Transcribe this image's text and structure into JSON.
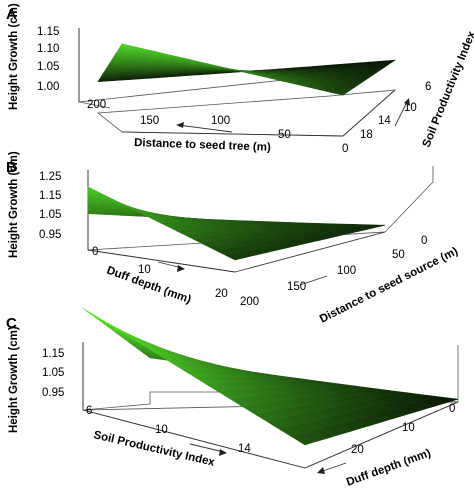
{
  "colors": {
    "surface_high": "#55e12c",
    "surface_low": "#050a03",
    "axis": "#333333"
  },
  "chart_data": [
    {
      "panel": "A",
      "type": "surface",
      "zlabel": "Height Growth (cm)",
      "xlabel": "Distance to seed tree (m)",
      "ylabel": "Soil Productivity Index",
      "x_ticks": [
        "200",
        "150",
        "100",
        "50",
        "0"
      ],
      "y_ticks": [
        "6",
        "10",
        "14",
        "18"
      ],
      "z_ticks": [
        "1.15",
        "1.10",
        "1.05",
        "1.00"
      ],
      "xlim": [
        0,
        200
      ],
      "ylim": [
        6,
        18
      ],
      "zlim": [
        1.0,
        1.15
      ],
      "corners": [
        {
          "x": 200,
          "y": 18,
          "z": 1.0
        },
        {
          "x": 200,
          "y": 6,
          "z": 1.03
        },
        {
          "x": 0,
          "y": 18,
          "z": 1.01
        },
        {
          "x": 0,
          "y": 6,
          "z": 1.14
        }
      ]
    },
    {
      "panel": "B",
      "type": "surface",
      "zlabel": "Height Growth (cm)",
      "xlabel": "Duff depth (mm)",
      "ylabel": "Distance to seed source (m)",
      "x_ticks": [
        "0",
        "10",
        "20"
      ],
      "y_ticks": [
        "0",
        "50",
        "100",
        "150",
        "200"
      ],
      "z_ticks": [
        "1.25",
        "1.15",
        "1.05",
        "0.95"
      ],
      "xlim": [
        0,
        20
      ],
      "ylim": [
        0,
        200
      ],
      "zlim": [
        0.95,
        1.25
      ],
      "corners": [
        {
          "x": 0,
          "y": 0,
          "z": 1.21
        },
        {
          "x": 0,
          "y": 200,
          "z": 1.1
        },
        {
          "x": 20,
          "y": 0,
          "z": 1.0
        },
        {
          "x": 20,
          "y": 200,
          "z": 0.96
        }
      ]
    },
    {
      "panel": "C",
      "type": "surface",
      "zlabel": "Height Growth (cm)",
      "xlabel": "Soil Productivity Index",
      "ylabel": "Duff depth (mm)",
      "x_ticks": [
        "6",
        "10",
        "14"
      ],
      "y_ticks": [
        "0",
        "10",
        "20"
      ],
      "z_ticks": [
        "1.15",
        "1.05",
        "0.95"
      ],
      "xlim": [
        6,
        18
      ],
      "ylim": [
        0,
        20
      ],
      "zlim": [
        0.95,
        1.15
      ],
      "corners": [
        {
          "x": 6,
          "y": 0,
          "z": 1.17
        },
        {
          "x": 6,
          "y": 20,
          "z": 1.05
        },
        {
          "x": 18,
          "y": 0,
          "z": 1.0
        },
        {
          "x": 18,
          "y": 20,
          "z": 0.95
        }
      ]
    }
  ]
}
